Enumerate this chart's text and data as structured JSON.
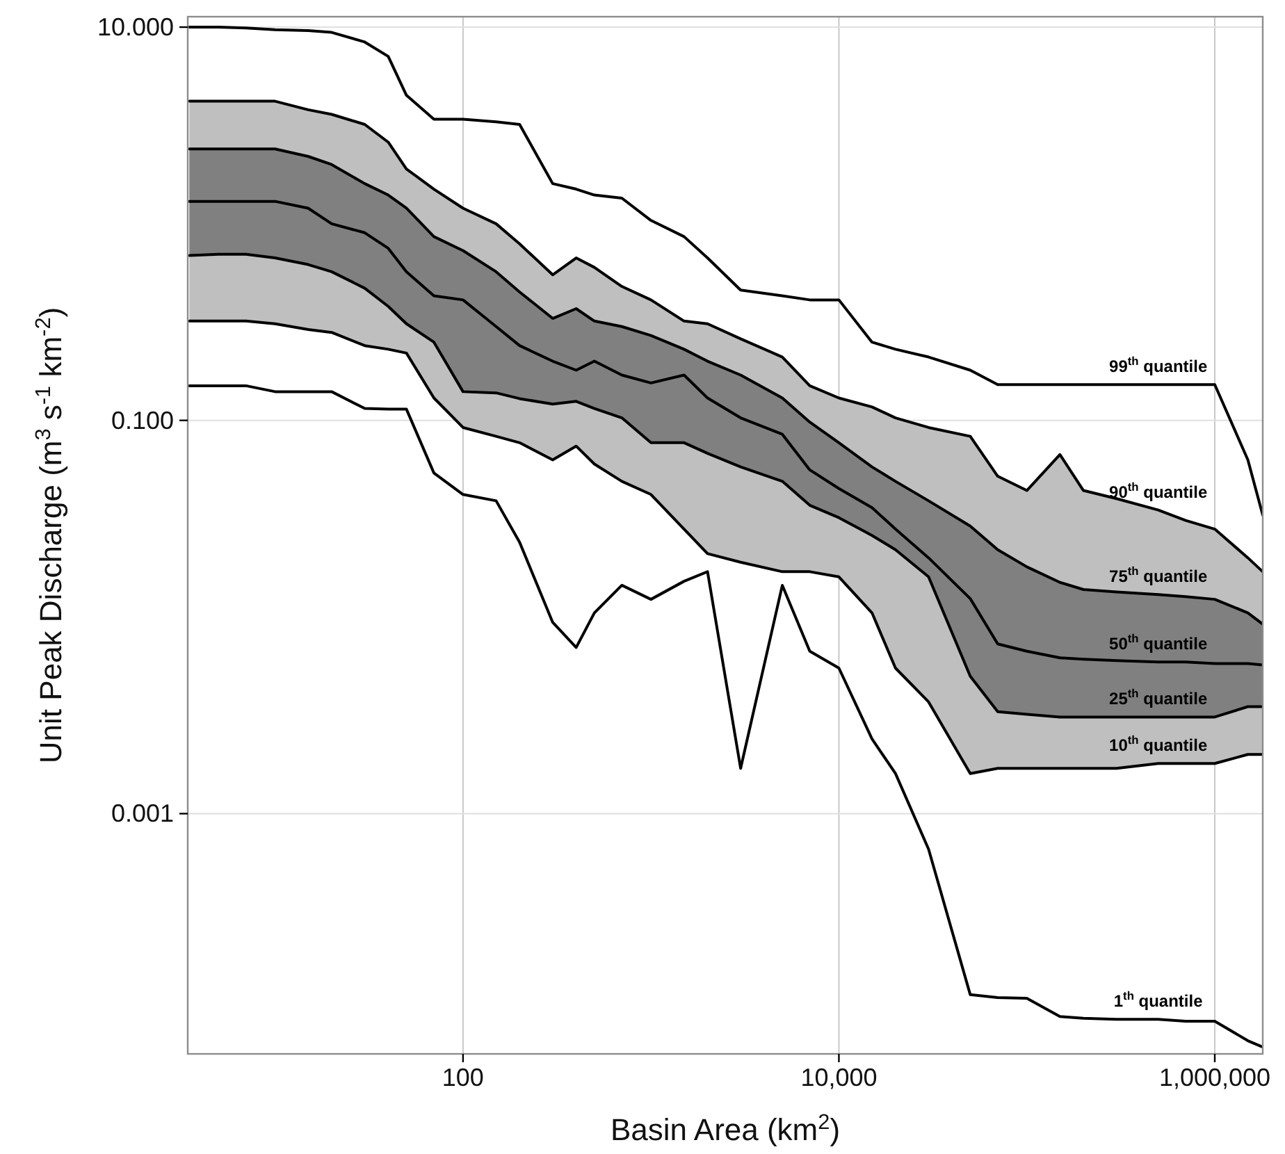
{
  "chart_data": {
    "type": "line",
    "xlabel": "Basin Area (km$^{2}$)",
    "ylabel": "Unit Peak Discharge (m$^{3}$ s$^{-1}$ km$^{-2}$)",
    "log": "xy",
    "grid": true,
    "xlim": [
      3.43,
      1800000
    ],
    "ylim": [
      6e-05,
      11.3
    ],
    "xticks": [
      100,
      {
        "value": 10000,
        "label": "10,000"
      },
      {
        "value": 1000000,
        "label": "1,000,000"
      }
    ],
    "yticks": [
      {
        "value": 10,
        "label": "10.000"
      },
      {
        "value": 0.1,
        "label": "0.100"
      },
      {
        "value": 0.001,
        "label": "0.001"
      }
    ],
    "x": [
      3.5,
      5,
      7,
      10,
      15,
      20,
      30,
      40,
      50,
      70,
      100,
      150,
      200,
      300,
      400,
      500,
      700,
      1000,
      1500,
      2000,
      3000,
      5000,
      7000,
      10000,
      15000,
      20000,
      30000,
      50000,
      70000,
      100000,
      150000,
      200000,
      300000,
      500000,
      700000,
      1000000,
      1500000,
      1800000
    ],
    "series": [
      {
        "name": "99$^{th}$ quantile",
        "color": "#000000",
        "values": [
          10,
          10,
          9.9,
          9.7,
          9.6,
          9.4,
          8.4,
          7.1,
          4.5,
          3.4,
          3.4,
          3.3,
          3.2,
          1.6,
          1.5,
          1.4,
          1.35,
          1.04,
          0.86,
          0.67,
          0.46,
          0.43,
          0.41,
          0.41,
          0.25,
          0.23,
          0.21,
          0.18,
          0.152,
          0.152,
          0.152,
          0.152,
          0.152,
          0.152,
          0.152,
          0.152,
          0.063,
          0.033
        ]
      },
      {
        "name": "90$^{th}$ quantile",
        "color": "#000000",
        "values": [
          4.2,
          4.2,
          4.2,
          4.2,
          3.8,
          3.6,
          3.2,
          2.6,
          1.9,
          1.5,
          1.2,
          1.0,
          0.79,
          0.55,
          0.67,
          0.6,
          0.48,
          0.41,
          0.32,
          0.31,
          0.26,
          0.21,
          0.15,
          0.13,
          0.117,
          0.103,
          0.092,
          0.083,
          0.052,
          0.044,
          0.067,
          0.044,
          0.04,
          0.035,
          0.031,
          0.028,
          0.02,
          0.017
        ],
        "lower": [
          0.32,
          0.32,
          0.32,
          0.31,
          0.29,
          0.28,
          0.24,
          0.23,
          0.22,
          0.13,
          0.092,
          0.083,
          0.077,
          0.063,
          0.074,
          0.06,
          0.049,
          0.042,
          0.028,
          0.021,
          0.019,
          0.017,
          0.017,
          0.016,
          0.0105,
          0.0055,
          0.0037,
          0.0016,
          0.0017,
          0.0017,
          0.0017,
          0.0017,
          0.0017,
          0.0018,
          0.0018,
          0.0018,
          0.002,
          0.002
        ],
        "upper": [
          4.2,
          4.2,
          4.2,
          4.2,
          3.8,
          3.6,
          3.2,
          2.6,
          1.9,
          1.5,
          1.2,
          1.0,
          0.79,
          0.55,
          0.67,
          0.6,
          0.48,
          0.41,
          0.32,
          0.31,
          0.26,
          0.21,
          0.15,
          0.13,
          0.117,
          0.103,
          0.092,
          0.083,
          0.052,
          0.044,
          0.067,
          0.044,
          0.04,
          0.035,
          0.031,
          0.028,
          0.02,
          0.017
        ]
      },
      {
        "name": "75$^{th}$ quantile",
        "color": "#000000",
        "values": [
          2.4,
          2.4,
          2.4,
          2.4,
          2.2,
          2.0,
          1.6,
          1.4,
          1.2,
          0.86,
          0.73,
          0.57,
          0.45,
          0.33,
          0.37,
          0.32,
          0.3,
          0.27,
          0.23,
          0.2,
          0.17,
          0.13,
          0.098,
          0.077,
          0.058,
          0.049,
          0.039,
          0.029,
          0.022,
          0.018,
          0.015,
          0.0138,
          0.0134,
          0.013,
          0.0127,
          0.0123,
          0.0105,
          0.0092
        ],
        "lower": [
          0.69,
          0.7,
          0.7,
          0.67,
          0.62,
          0.57,
          0.47,
          0.38,
          0.31,
          0.25,
          0.14,
          0.138,
          0.129,
          0.121,
          0.125,
          0.115,
          0.103,
          0.077,
          0.077,
          0.068,
          0.058,
          0.049,
          0.037,
          0.032,
          0.026,
          0.022,
          0.016,
          0.005,
          0.0033,
          0.0032,
          0.0031,
          0.0031,
          0.0031,
          0.0031,
          0.0031,
          0.0031,
          0.0035,
          0.0035
        ],
        "upper": [
          2.4,
          2.4,
          2.4,
          2.4,
          2.2,
          2.0,
          1.6,
          1.4,
          1.2,
          0.86,
          0.73,
          0.57,
          0.45,
          0.33,
          0.37,
          0.32,
          0.3,
          0.27,
          0.23,
          0.2,
          0.17,
          0.13,
          0.098,
          0.077,
          0.058,
          0.049,
          0.039,
          0.029,
          0.022,
          0.018,
          0.015,
          0.0138,
          0.0134,
          0.013,
          0.0127,
          0.0123,
          0.0105,
          0.0092
        ]
      },
      {
        "name": "50$^{th}$ quantile",
        "color": "#000000",
        "values": [
          1.3,
          1.3,
          1.3,
          1.3,
          1.2,
          1.0,
          0.9,
          0.75,
          0.57,
          0.43,
          0.41,
          0.3,
          0.24,
          0.2,
          0.18,
          0.2,
          0.17,
          0.155,
          0.17,
          0.13,
          0.103,
          0.085,
          0.056,
          0.045,
          0.036,
          0.028,
          0.02,
          0.0124,
          0.0073,
          0.0067,
          0.0062,
          0.0061,
          0.006,
          0.0059,
          0.0059,
          0.0058,
          0.0058,
          0.0057
        ]
      },
      {
        "name": "25$^{th}$ quantile",
        "color": "#000000",
        "values": [
          0.69,
          0.7,
          0.7,
          0.67,
          0.62,
          0.57,
          0.47,
          0.38,
          0.31,
          0.25,
          0.14,
          0.138,
          0.129,
          0.121,
          0.125,
          0.115,
          0.103,
          0.077,
          0.077,
          0.068,
          0.058,
          0.049,
          0.037,
          0.032,
          0.026,
          0.022,
          0.016,
          0.005,
          0.0033,
          0.0032,
          0.0031,
          0.0031,
          0.0031,
          0.0031,
          0.0031,
          0.0031,
          0.0035,
          0.0035
        ]
      },
      {
        "name": "10$^{th}$ quantile",
        "color": "#000000",
        "values": [
          0.32,
          0.32,
          0.32,
          0.31,
          0.29,
          0.28,
          0.24,
          0.23,
          0.22,
          0.13,
          0.092,
          0.083,
          0.077,
          0.063,
          0.074,
          0.06,
          0.049,
          0.042,
          0.028,
          0.021,
          0.019,
          0.017,
          0.017,
          0.016,
          0.0105,
          0.0055,
          0.0037,
          0.0016,
          0.0017,
          0.0017,
          0.0017,
          0.0017,
          0.0017,
          0.0018,
          0.0018,
          0.0018,
          0.002,
          0.002
        ]
      },
      {
        "name": "1$^{th}$ quantile",
        "color": "#000000",
        "values": [
          0.15,
          0.15,
          0.15,
          0.14,
          0.14,
          0.14,
          0.115,
          0.114,
          0.114,
          0.054,
          0.042,
          0.039,
          0.024,
          0.0094,
          0.007,
          0.0105,
          0.0145,
          0.0123,
          0.0152,
          0.017,
          0.0017,
          0.0145,
          0.0067,
          0.0055,
          0.0024,
          0.0016,
          0.00066,
          0.00012,
          0.000116,
          0.000115,
          9.3e-05,
          9.1e-05,
          9e-05,
          9e-05,
          8.8e-05,
          8.8e-05,
          7e-05,
          6.5e-05
        ]
      }
    ]
  }
}
